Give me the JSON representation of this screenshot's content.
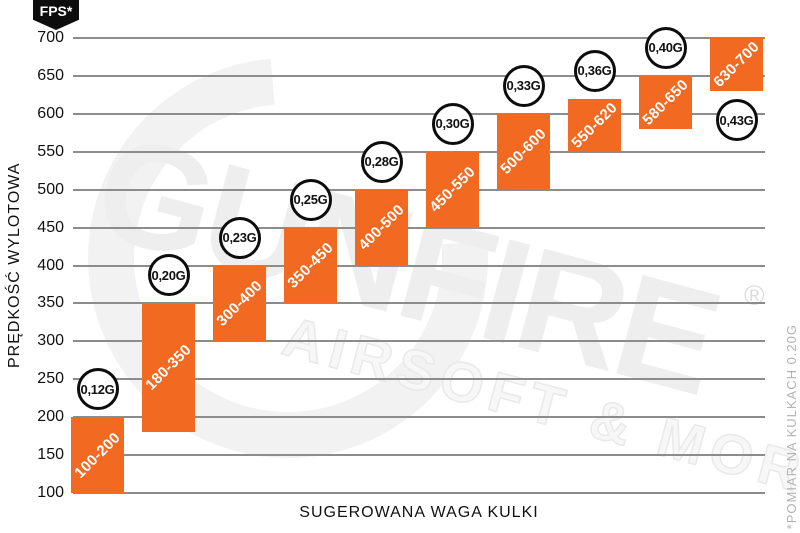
{
  "header": {
    "fps_badge": "FPS*"
  },
  "axes": {
    "y_label": "PRĘDKOŚĆ WYLOTOWA",
    "x_label": "SUGEROWANA WAGA KULKI"
  },
  "footnote": "*POMIAR NA KULKACH 0.20G",
  "watermark": {
    "brand": "GUNFIRE",
    "tagline": "AIRSOFT & MORE",
    "registered": "®"
  },
  "colors": {
    "bar_orange": "#F26921",
    "grid_gray": "#8C8C8C",
    "circle_border": "#0D0D0D",
    "text_black": "#111111",
    "footnote_gray": "#B3B3B3",
    "watermark_gray": "#EFEFEF"
  },
  "chart_data": {
    "type": "bar",
    "title": "",
    "xlabel": "SUGEROWANA WAGA KULKI",
    "ylabel": "PRĘDKOŚĆ WYLOTOWA",
    "y_unit": "FPS",
    "ylim": [
      100,
      700
    ],
    "ytick_step": 50,
    "grid": true,
    "categories": [
      "0,12G",
      "0,20G",
      "0,23G",
      "0,25G",
      "0,28G",
      "0,30G",
      "0,33G",
      "0,36G",
      "0,40G",
      "0,43G"
    ],
    "series": [
      {
        "weight": "0,12G",
        "range_label": "100-200",
        "fps_low": 100,
        "fps_high": 200,
        "badge_position": "above"
      },
      {
        "weight": "0,20G",
        "range_label": "180-350",
        "fps_low": 180,
        "fps_high": 350,
        "badge_position": "above"
      },
      {
        "weight": "0,23G",
        "range_label": "300-400",
        "fps_low": 300,
        "fps_high": 400,
        "badge_position": "above"
      },
      {
        "weight": "0,25G",
        "range_label": "350-450",
        "fps_low": 350,
        "fps_high": 450,
        "badge_position": "above"
      },
      {
        "weight": "0,28G",
        "range_label": "400-500",
        "fps_low": 400,
        "fps_high": 500,
        "badge_position": "above"
      },
      {
        "weight": "0,30G",
        "range_label": "450-550",
        "fps_low": 450,
        "fps_high": 550,
        "badge_position": "above"
      },
      {
        "weight": "0,33G",
        "range_label": "500-600",
        "fps_low": 500,
        "fps_high": 600,
        "badge_position": "above"
      },
      {
        "weight": "0,36G",
        "range_label": "550-620",
        "fps_low": 550,
        "fps_high": 620,
        "badge_position": "above"
      },
      {
        "weight": "0,40G",
        "range_label": "580-650",
        "fps_low": 580,
        "fps_high": 650,
        "badge_position": "above"
      },
      {
        "weight": "0,43G",
        "range_label": "630-700",
        "fps_low": 630,
        "fps_high": 700,
        "badge_position": "below"
      }
    ]
  }
}
